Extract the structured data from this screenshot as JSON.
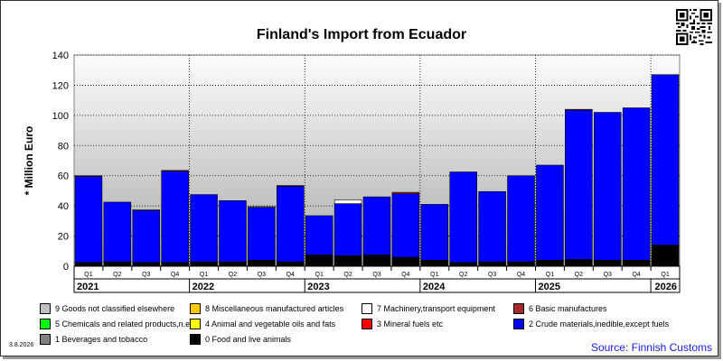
{
  "chart_data": {
    "type": "bar",
    "stacked": true,
    "title": "Finland's Import from Ecuador",
    "ylabel": "* Million Euro",
    "ylim": [
      0,
      140
    ],
    "yticks": [
      0,
      20,
      40,
      60,
      80,
      100,
      120,
      140
    ],
    "grid": true,
    "categories": [
      "Q1",
      "Q2",
      "Q3",
      "Q4",
      "Q1",
      "Q2",
      "Q3",
      "Q4",
      "Q1",
      "Q2",
      "Q3",
      "Q4",
      "Q1",
      "Q2",
      "Q3",
      "Q4",
      "Q1",
      "Q2",
      "Q3",
      "Q4",
      "Q1"
    ],
    "years": [
      {
        "label": "2021",
        "quarters": 4
      },
      {
        "label": "2022",
        "quarters": 4
      },
      {
        "label": "2023",
        "quarters": 4
      },
      {
        "label": "2024",
        "quarters": 4
      },
      {
        "label": "2025",
        "quarters": 4
      },
      {
        "label": "2026",
        "quarters": 1
      }
    ],
    "series": [
      {
        "name": "0 Food and live animals",
        "color": "#000000",
        "values": [
          2.5,
          3.0,
          2.5,
          2.5,
          3.0,
          3.0,
          4.0,
          3.0,
          7.5,
          7.0,
          7.5,
          6.0,
          4.0,
          2.5,
          3.0,
          3.0,
          4.0,
          4.5,
          4.0,
          4.0,
          14.0
        ]
      },
      {
        "name": "2 Crude materials,inedible,except fuels",
        "color": "#0000ff",
        "values": [
          57.0,
          39.5,
          34.5,
          60.5,
          44.5,
          40.5,
          35.0,
          50.0,
          26.0,
          34.5,
          38.5,
          42.0,
          37.0,
          60.0,
          46.5,
          57.0,
          63.0,
          99.0,
          98.0,
          101.0,
          113.0
        ]
      },
      {
        "name": "6 Basic manufactures",
        "color": "#a52a2a",
        "values": [
          0.5,
          0.0,
          0.0,
          0.5,
          0.0,
          0.0,
          0.0,
          0.5,
          0.0,
          0.0,
          0.0,
          1.0,
          0.0,
          0.0,
          0.0,
          0.0,
          0.0,
          0.5,
          0.0,
          0.0,
          0.0
        ]
      },
      {
        "name": "7 Machinery,transport equipment",
        "color": "#ffffff",
        "values": [
          0.0,
          0.0,
          0.5,
          0.0,
          0.0,
          0.0,
          0.5,
          0.0,
          0.0,
          2.5,
          0.0,
          0.0,
          0.0,
          0.0,
          0.0,
          0.0,
          0.0,
          0.0,
          0.0,
          0.0,
          0.0
        ]
      }
    ],
    "legend": [
      {
        "name": "9 Goods not classified elsewhere",
        "color": "#c0c0c0"
      },
      {
        "name": "8 Miscellaneous manufactured articles",
        "color": "#ffc800"
      },
      {
        "name": "7 Machinery,transport equipment",
        "color": "#ffffff"
      },
      {
        "name": "6 Basic manufactures",
        "color": "#a52a2a"
      },
      {
        "name": "5 Chemicals and related products,n.e.s.",
        "color": "#00ff00"
      },
      {
        "name": "4 Animal and vegetable oils and fats",
        "color": "#ffff00"
      },
      {
        "name": "3 Mineral fuels etc",
        "color": "#ff0000"
      },
      {
        "name": "2 Crude materials,inedible,except fuels",
        "color": "#0000ff"
      },
      {
        "name": "1 Beverages and tobacco",
        "color": "#808080"
      },
      {
        "name": "0 Food and live animals",
        "color": "#000000"
      }
    ],
    "legend_position": "bottom"
  },
  "footer": {
    "date": "3.8.2026",
    "source": "Source: Finnish Customs"
  },
  "icons": {
    "qr": "qr-code-icon"
  }
}
